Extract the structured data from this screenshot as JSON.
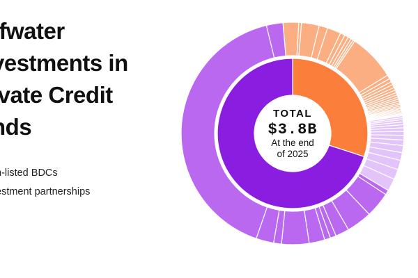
{
  "title": {
    "lines": [
      "ffwater",
      "vestments in",
      "ivate Credit",
      "nds"
    ]
  },
  "legend": {
    "items": [
      {
        "label": "n-listed BDCs",
        "color": "#fb8b4f"
      },
      {
        "label": "estment partnerships",
        "color": "#9b3ce8"
      }
    ]
  },
  "center": {
    "total_label": "TOTAL",
    "total_value": "$3.8B",
    "note_line1": "At the end",
    "note_line2": "of 2025"
  },
  "chart_data": {
    "type": "pie",
    "style": "sunburst",
    "title": "",
    "total_label": "$3.8B",
    "inner_ring": [
      {
        "name": "Non-listed BDCs",
        "share": 0.3,
        "color": "#fb7e3a"
      },
      {
        "name": "Investment partnerships",
        "share": 0.7,
        "color": "#8a1de0"
      }
    ],
    "outer_ring": {
      "start_deg": -5,
      "groups": [
        {
          "parent": "Non-listed BDCs",
          "color": "#fbae82",
          "shares": [
            4.0,
            0.7,
            4.5,
            2.2,
            3.5,
            1.2,
            1.0,
            0.8,
            0.6,
            0.5,
            12.0,
            1.0,
            0.9,
            0.8,
            0.8,
            0.7,
            0.7,
            0.6,
            0.6,
            0.5,
            0.5,
            0.5,
            0.4,
            0.4,
            0.4,
            0.3,
            0.3,
            0.3,
            0.3,
            0.3,
            0.2,
            0.2,
            0.2
          ]
        },
        {
          "parent": "Investment partnerships",
          "color": "#e3c4fa",
          "shares": [
            0.5,
            0.5,
            0.6,
            0.7,
            0.8,
            0.9,
            1.0,
            1.2,
            1.4,
            1.8,
            2.0,
            2.4,
            2.6,
            3.2
          ]
        },
        {
          "parent": "Investment partnerships",
          "color": "#b968ef",
          "shares": [
            1.2,
            6.5,
            6.5,
            3.5,
            1.5,
            1.5,
            4.0,
            7.0,
            2.0,
            4.5,
            72.0,
            4.2
          ]
        }
      ]
    }
  }
}
